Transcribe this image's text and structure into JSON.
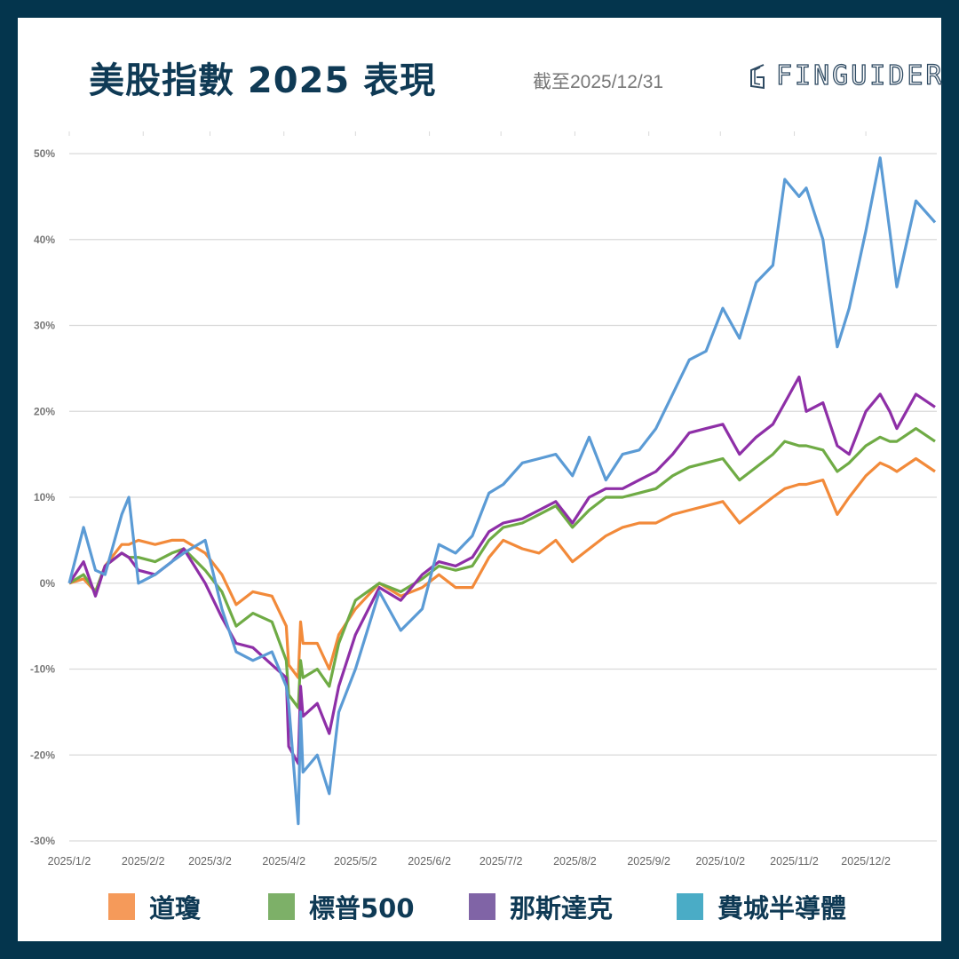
{
  "header": {
    "title": "美股指數 2025 表現",
    "as_of": "截至2025/12/31",
    "logo": "FINGUIDER"
  },
  "chart_data": {
    "type": "line",
    "title": "美股指數 2025 表現",
    "xlabel": "",
    "ylabel": "",
    "ylim": [
      -30,
      50
    ],
    "yticks": [
      50,
      40,
      30,
      20,
      10,
      0,
      -10,
      -20,
      -30
    ],
    "ytick_labels": [
      "50%",
      "40%",
      "30%",
      "20%",
      "10%",
      "0%",
      "-10%",
      "-20%",
      "-30%"
    ],
    "xtick_labels": [
      "2025/1/2",
      "2025/2/2",
      "2025/3/2",
      "2025/4/2",
      "2025/5/2",
      "2025/6/2",
      "2025/7/2",
      "2025/8/2",
      "2025/9/2",
      "2025/10/2",
      "2025/11/2",
      "2025/12/2"
    ],
    "grid": "horizontal",
    "legend": "bottom",
    "x": [
      "2025-01-02",
      "2025-01-08",
      "2025-01-13",
      "2025-01-17",
      "2025-01-24",
      "2025-01-27",
      "2025-01-31",
      "2025-02-07",
      "2025-02-14",
      "2025-02-19",
      "2025-02-28",
      "2025-03-07",
      "2025-03-13",
      "2025-03-20",
      "2025-03-28",
      "2025-04-03",
      "2025-04-04",
      "2025-04-08",
      "2025-04-09",
      "2025-04-10",
      "2025-04-16",
      "2025-04-21",
      "2025-04-25",
      "2025-05-02",
      "2025-05-12",
      "2025-05-21",
      "2025-05-30",
      "2025-06-06",
      "2025-06-13",
      "2025-06-20",
      "2025-06-27",
      "2025-07-03",
      "2025-07-11",
      "2025-07-18",
      "2025-07-25",
      "2025-08-01",
      "2025-08-08",
      "2025-08-15",
      "2025-08-22",
      "2025-08-29",
      "2025-09-05",
      "2025-09-12",
      "2025-09-19",
      "2025-09-26",
      "2025-10-03",
      "2025-10-10",
      "2025-10-17",
      "2025-10-24",
      "2025-10-29",
      "2025-11-04",
      "2025-11-07",
      "2025-11-14",
      "2025-11-20",
      "2025-11-25",
      "2025-12-02",
      "2025-12-08",
      "2025-12-12",
      "2025-12-15",
      "2025-12-23",
      "2025-12-31"
    ],
    "series": [
      {
        "name": "道瓊",
        "color": "#f28a3a",
        "legend_color": "#f59a5a",
        "values": [
          0,
          0.5,
          -1,
          2,
          4.5,
          4.5,
          5,
          4.5,
          5,
          5,
          3.5,
          1,
          -2.5,
          -1,
          -1.5,
          -5,
          -9.5,
          -11,
          -4.5,
          -7,
          -7,
          -10,
          -6,
          -3,
          0,
          -1.5,
          -0.5,
          1,
          -0.5,
          -0.5,
          3,
          5,
          4,
          3.5,
          5,
          2.5,
          4,
          5.5,
          6.5,
          7,
          7,
          8,
          8.5,
          9,
          9.5,
          7,
          8.5,
          10,
          11,
          11.5,
          11.5,
          12,
          8,
          10,
          12.5,
          14,
          13.5,
          13,
          14.5,
          13
        ]
      },
      {
        "name": "標普500",
        "color": "#6fab45",
        "legend_color": "#7db068",
        "values": [
          0,
          1,
          -1,
          2,
          3.5,
          3,
          3,
          2.5,
          3.5,
          4,
          1.5,
          -1,
          -5,
          -3.5,
          -4.5,
          -9,
          -13,
          -14.5,
          -9,
          -11,
          -10,
          -12,
          -7,
          -2,
          0,
          -1,
          0.5,
          2,
          1.5,
          2,
          5,
          6.5,
          7,
          8,
          9,
          6.5,
          8.5,
          10,
          10,
          10.5,
          11,
          12.5,
          13.5,
          14,
          14.5,
          12,
          13.5,
          15,
          16.5,
          16,
          16,
          15.5,
          13,
          14,
          16,
          17,
          16.5,
          16.5,
          18,
          16.5
        ]
      },
      {
        "name": "那斯達克",
        "color": "#8e2fa7",
        "legend_color": "#8064a6",
        "values": [
          0,
          2.5,
          -1.5,
          2,
          3.5,
          3,
          1.5,
          1,
          2.5,
          4,
          0,
          -4,
          -7,
          -7.5,
          -9.5,
          -11,
          -19,
          -21,
          -12,
          -15.5,
          -14,
          -17.5,
          -12,
          -6,
          -0.5,
          -2,
          1,
          2.5,
          2,
          3,
          6,
          7,
          7.5,
          8.5,
          9.5,
          7,
          10,
          11,
          11,
          12,
          13,
          15,
          17.5,
          18,
          18.5,
          15,
          17,
          18.5,
          21,
          24,
          20,
          21,
          16,
          15,
          20,
          22,
          20,
          18,
          22,
          20.5
        ]
      },
      {
        "name": "費城半導體",
        "color": "#5b9bd5",
        "legend_color": "#4aacc6",
        "values": [
          0,
          6.5,
          1.5,
          1,
          8,
          10,
          0,
          1,
          2.5,
          3.5,
          5,
          -3,
          -8,
          -9,
          -8,
          -12,
          -14,
          -28,
          -15,
          -22,
          -20,
          -24.5,
          -15,
          -10,
          -1,
          -5.5,
          -3,
          4.5,
          3.5,
          5.5,
          10.5,
          11.5,
          14,
          14.5,
          15,
          12.5,
          17,
          12,
          15,
          15.5,
          18,
          22,
          26,
          27,
          32,
          28.5,
          35,
          37,
          47,
          45,
          46,
          40,
          27.5,
          32,
          41,
          49.5,
          41,
          34.5,
          44.5,
          42
        ]
      }
    ]
  }
}
